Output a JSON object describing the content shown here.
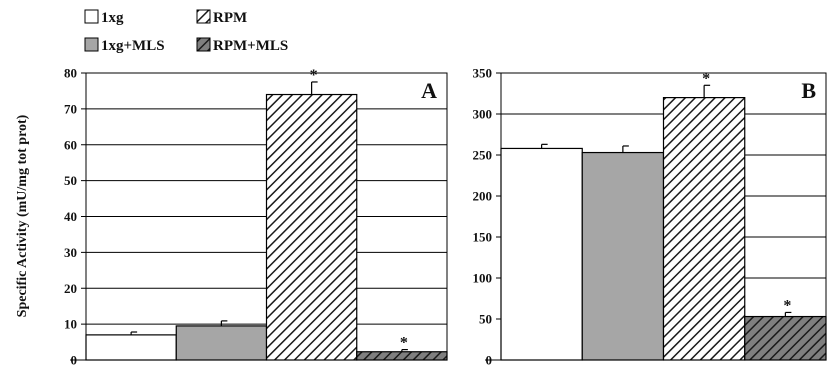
{
  "legend": {
    "items": [
      {
        "label": "1xg",
        "style": "white"
      },
      {
        "label": "RPM",
        "style": "hatch"
      },
      {
        "label": "1xg+MLS",
        "style": "gray"
      },
      {
        "label": "RPM+MLS",
        "style": "hatch-dark"
      }
    ]
  },
  "colors": {
    "white_fill": "#ffffff",
    "gray_fill": "#a6a6a6",
    "hatch_stroke": "#1a1a1a",
    "hatch_dark_bg": "#7f7f7f",
    "gridline": "#000000"
  },
  "chart_data": [
    {
      "type": "bar",
      "panel_label": "A",
      "ylabel": "Specific Activity (mU/mg tot prot)",
      "ylim": [
        0,
        80
      ],
      "yticks": [
        0,
        10,
        20,
        30,
        40,
        50,
        60,
        70,
        80
      ],
      "grid": true,
      "categories": [
        "1xg",
        "1xg+MLS",
        "RPM",
        "RPM+MLS"
      ],
      "values": [
        7,
        9.5,
        74,
        2.3
      ],
      "errors": [
        0.8,
        1.4,
        3.5,
        0.6
      ],
      "significance": [
        "",
        "",
        "*",
        "*"
      ]
    },
    {
      "type": "bar",
      "panel_label": "B",
      "ylabel": "",
      "ylim": [
        0,
        350
      ],
      "yticks": [
        0,
        50,
        100,
        150,
        200,
        250,
        300,
        350
      ],
      "grid": true,
      "categories": [
        "1xg",
        "1xg+MLS",
        "RPM",
        "RPM+MLS"
      ],
      "values": [
        258,
        253,
        320,
        53
      ],
      "errors": [
        5,
        8,
        15,
        5
      ],
      "significance": [
        "",
        "",
        "*",
        "*"
      ]
    }
  ]
}
